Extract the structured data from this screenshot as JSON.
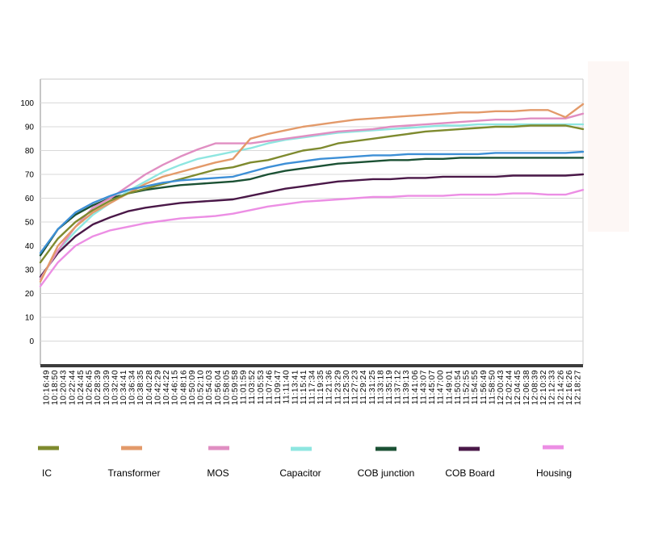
{
  "chart_data": {
    "type": "line",
    "title": "",
    "xlabel": "",
    "ylabel": "",
    "ylim": [
      -10,
      110
    ],
    "yticks": [
      0,
      10,
      20,
      30,
      40,
      50,
      60,
      70,
      80,
      90,
      100
    ],
    "grid": "horizontal",
    "legend_placement": "bottom",
    "x_tick_labels": [
      "10:16:49",
      "10:18:50",
      "10:20:43",
      "10:22:44",
      "10:24:45",
      "10:26:45",
      "10:28:39",
      "10:30:39",
      "10:32:40",
      "10:34:41",
      "10:36:34",
      "10:38:35",
      "10:40:28",
      "10:42:29",
      "10:44:22",
      "10:46:15",
      "10:48:16",
      "10:50:09",
      "10:52:10",
      "10:54:03",
      "10:56:04",
      "10:58:05",
      "10:59:58",
      "11:01:59",
      "11:03:52",
      "11:05:53",
      "11:07:46",
      "11:09:47",
      "11:11:40",
      "11:13:41",
      "11:15:41",
      "11:17:34",
      "11:19:35",
      "11:21:36",
      "11:23:29",
      "11:25:30",
      "11:27:23",
      "11:29:24",
      "11:31:25",
      "11:33:18",
      "11:35:19",
      "11:37:12",
      "11:39:13",
      "11:41:06",
      "11:43:07",
      "11:45:07",
      "11:47:00",
      "11:49:01",
      "11:50:54",
      "11:52:55",
      "11:54:55",
      "11:56:49",
      "11:58:50",
      "12:00:43",
      "12:02:44",
      "12:04:45",
      "12:06:38",
      "12:08:39",
      "12:10:32",
      "12:12:33",
      "12:14:26",
      "12:16:26",
      "12:18:27"
    ],
    "x": [
      0,
      2,
      4,
      6,
      8,
      10,
      12,
      14,
      16,
      18,
      20,
      22,
      24,
      26,
      28,
      30,
      32,
      34,
      36,
      38,
      40,
      42,
      44,
      46,
      48,
      50,
      52,
      54,
      56,
      58,
      60,
      62
    ],
    "series": [
      {
        "name": "IC",
        "color": "#7e8a2e",
        "values": [
          33,
          43,
          50,
          55,
          59,
          62,
          64,
          66,
          68,
          70,
          72,
          73,
          75,
          76,
          78,
          80,
          81,
          83,
          84,
          85,
          86,
          87,
          88,
          88.5,
          89,
          89.5,
          90,
          90,
          90.5,
          90.5,
          90.5,
          89
        ]
      },
      {
        "name": "Transformer",
        "color": "#e39a6a",
        "values": [
          25,
          40,
          48,
          54,
          58,
          62,
          66,
          69,
          71,
          73,
          75,
          76.5,
          85,
          87,
          88.5,
          90,
          91,
          92,
          93,
          93.5,
          94,
          94.5,
          95,
          95.5,
          96,
          96,
          96.5,
          96.5,
          97,
          97,
          94,
          99.5
        ]
      },
      {
        "name": "MOS",
        "color": "#e08ec2",
        "values": [
          26,
          38,
          48,
          56,
          60,
          65,
          70,
          74,
          77.5,
          80.5,
          83,
          83,
          83,
          84,
          85,
          86,
          87,
          88,
          88.5,
          89,
          90,
          90.5,
          91,
          91.5,
          92,
          92.5,
          93,
          93,
          93.5,
          93.5,
          93.5,
          95.5
        ]
      },
      {
        "name": "Capacitor",
        "color": "#8ee6e0",
        "values": [
          26,
          38,
          46,
          53,
          58,
          63,
          67,
          71,
          74,
          76.5,
          78,
          79.5,
          81,
          83,
          84.5,
          85.5,
          86.5,
          87.5,
          88,
          88.5,
          89,
          89.5,
          90,
          90.5,
          90.5,
          91,
          91,
          91,
          91,
          91,
          91,
          91
        ]
      },
      {
        "name": "COB  junction",
        "color": "#1b5134",
        "values": [
          36,
          47,
          53,
          57,
          60,
          62,
          63.5,
          64.5,
          65.5,
          66,
          66.5,
          67,
          68,
          70,
          71.5,
          72.5,
          73.5,
          74.5,
          75,
          75.5,
          76,
          76,
          76.5,
          76.5,
          77,
          77,
          77,
          77,
          77,
          77,
          77,
          77
        ]
      },
      {
        "name": "COB Board",
        "color": "#4a1848",
        "values": [
          27,
          37,
          44,
          49,
          52,
          54.5,
          56,
          57,
          58,
          58.5,
          59,
          59.5,
          61,
          62.5,
          64,
          65,
          66,
          67,
          67.5,
          68,
          68,
          68.5,
          68.5,
          69,
          69,
          69,
          69,
          69.5,
          69.5,
          69.5,
          69.5,
          70
        ]
      },
      {
        "name": "Housing",
        "color": "#ec8ee4",
        "values": [
          23,
          33,
          40,
          44,
          46.5,
          48,
          49.5,
          50.5,
          51.5,
          52,
          52.5,
          53.5,
          55,
          56.5,
          57.5,
          58.5,
          59,
          59.5,
          60,
          60.5,
          60.5,
          61,
          61,
          61,
          61.5,
          61.5,
          61.5,
          62,
          62,
          61.5,
          61.5,
          63.5
        ]
      }
    ],
    "extra_series": [
      {
        "name": "",
        "color": "#3d8fd6",
        "values": [
          37,
          47,
          54,
          58,
          61,
          63.5,
          65,
          66.5,
          67.5,
          68,
          68.5,
          69,
          71,
          73,
          74.5,
          75.5,
          76.5,
          77,
          77.5,
          78,
          78,
          78.5,
          78.5,
          78.5,
          78.5,
          78.5,
          79,
          79,
          79,
          79,
          79,
          79.5
        ]
      }
    ]
  }
}
